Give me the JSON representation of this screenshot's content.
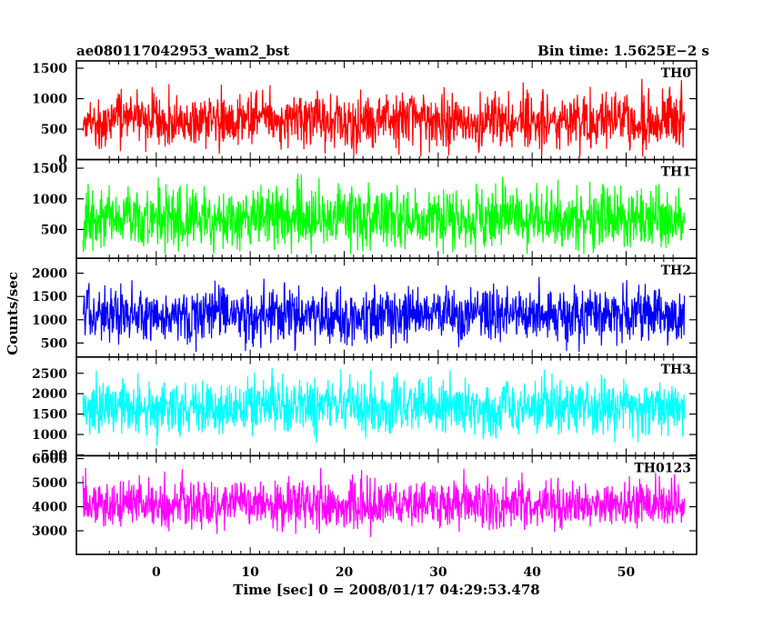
{
  "header": {
    "left_title": "ae080117042953_wam2_bst",
    "right_title": "Bin time: 1.5625E−2 s"
  },
  "chart_data": {
    "type": "line",
    "title": "ae080117042953_wam2_bst",
    "subtitle": "Bin time: 1.5625E−2 s",
    "xlabel": "Time [sec] 0 = 2008/01/17 04:29:53.478",
    "ylabel": "Counts/sec",
    "xlim": [
      -8.5,
      57.5
    ],
    "x_range_data": [
      -7.8,
      56.2
    ],
    "xticks": [
      0,
      10,
      20,
      30,
      40,
      50
    ],
    "grid": false,
    "panels": [
      {
        "name": "TH0",
        "color": "#ff0000",
        "ylim": [
          0,
          1620
        ],
        "yticks": [
          0,
          500,
          1000,
          1500
        ],
        "mean": 640,
        "noise_sd": 230,
        "clip": [
          50,
          1620
        ]
      },
      {
        "name": "TH1",
        "color": "#00ff00",
        "ylim": [
          30,
          1640
        ],
        "yticks": [
          500,
          1000,
          1500
        ],
        "mean": 690,
        "noise_sd": 250,
        "clip": [
          100,
          1640
        ]
      },
      {
        "name": "TH2",
        "color": "#0000ff",
        "ylim": [
          200,
          2320
        ],
        "yticks": [
          500,
          1000,
          1500,
          2000
        ],
        "mean": 1100,
        "noise_sd": 290,
        "clip": [
          310,
          2320
        ]
      },
      {
        "name": "TH3",
        "color": "#00ffff",
        "ylim": [
          480,
          2900
        ],
        "yticks": [
          500,
          1000,
          1500,
          2000,
          2500
        ],
        "mean": 1650,
        "noise_sd": 340,
        "clip": [
          560,
          2900
        ]
      },
      {
        "name": "TH0123",
        "color": "#ff00ff",
        "ylim": [
          2020,
          6120
        ],
        "yticks": [
          3000,
          4000,
          5000,
          6000
        ],
        "mean": 4100,
        "noise_sd": 500,
        "clip": [
          2300,
          6120
        ]
      }
    ]
  }
}
